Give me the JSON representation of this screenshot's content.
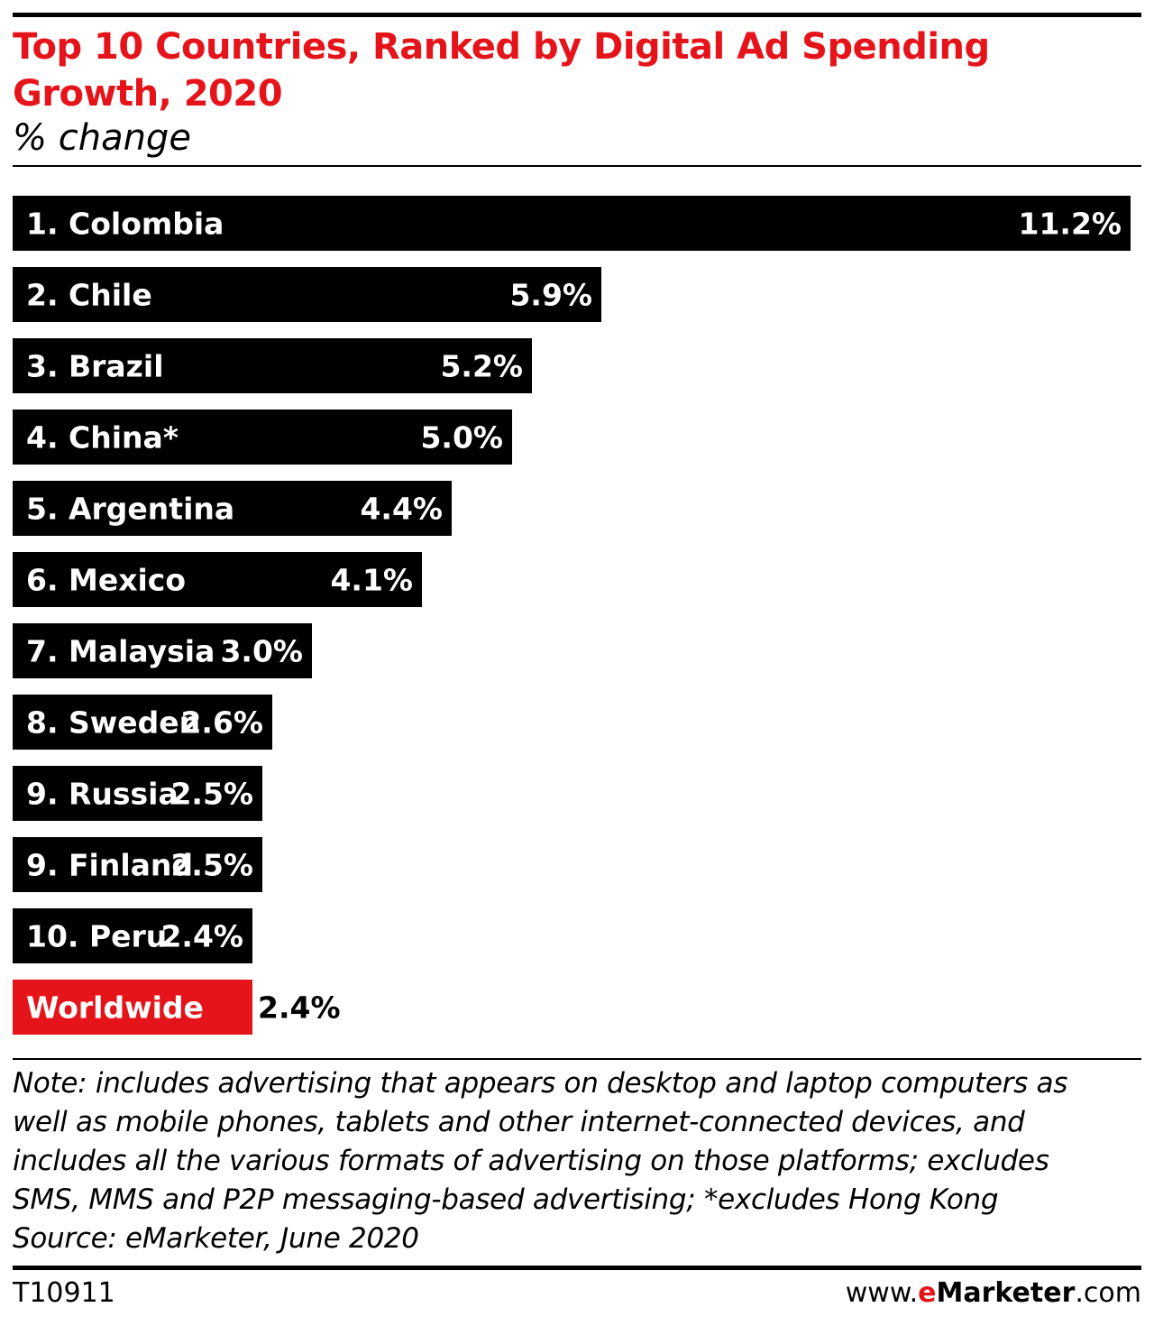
{
  "chart_data": {
    "type": "bar",
    "orientation": "horizontal",
    "title": "Top 10 Countries, Ranked by Digital Ad Spending Growth, 2020",
    "subtitle": "% change",
    "categories": [
      "1. Colombia",
      "2. Chile",
      "3. Brazil",
      "4. China*",
      "5. Argentina",
      "6. Mexico",
      "7. Malaysia",
      "8. Sweden",
      "9. Russia",
      "9. Finland",
      "10. Peru",
      "Worldwide"
    ],
    "values": [
      11.2,
      5.9,
      5.2,
      5.0,
      4.4,
      4.1,
      3.0,
      2.6,
      2.5,
      2.5,
      2.4,
      2.4
    ],
    "value_labels": [
      "11.2%",
      "5.9%",
      "5.2%",
      "5.0%",
      "4.4%",
      "4.1%",
      "3.0%",
      "2.6%",
      "2.5%",
      "2.5%",
      "2.4%",
      "2.4%"
    ],
    "highlight_index": 11,
    "colors": {
      "bar": "#000000",
      "highlight": "#e5141b",
      "label": "#ffffff",
      "title": "#e5141b"
    },
    "xlim": [
      0,
      11.2
    ],
    "grid": false,
    "legend": "none"
  },
  "note": [
    "Note: includes advertising that appears on desktop and laptop computers as",
    "well as mobile phones, tablets and other internet-connected devices, and",
    "includes all the various formats of advertising on those platforms; excludes",
    "SMS, MMS and P2P messaging-based advertising; *excludes Hong Kong",
    "Source: eMarketer, June 2020"
  ],
  "footer": {
    "chart_id": "T10911",
    "brand_prefix": "www.",
    "brand_e": "e",
    "brand_name": "Marketer",
    "brand_suffix": ".com"
  }
}
